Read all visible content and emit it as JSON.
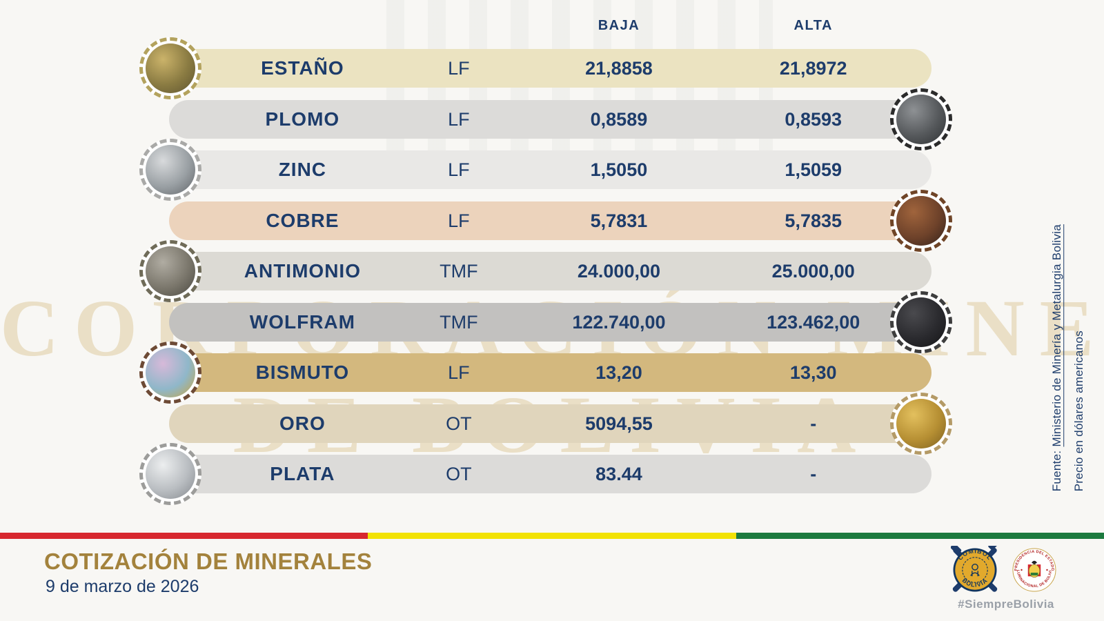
{
  "header": {
    "baja": "BAJA",
    "alta": "ALTA"
  },
  "table": {
    "rows": [
      {
        "name": "ESTAÑO",
        "unit": "LF",
        "baja": "21,8858",
        "alta": "21,8972",
        "side": "left",
        "row_bg": "#ebe3c1",
        "circle_border": "#b3a25d",
        "mineral_colors": [
          "#cbb36a",
          "#8a7b42",
          "#5e5430"
        ]
      },
      {
        "name": "PLOMO",
        "unit": "LF",
        "baja": "0,8589",
        "alta": "0,8593",
        "side": "right",
        "row_bg": "#dcdbd9",
        "circle_border": "#2b2b2b",
        "mineral_colors": [
          "#8e9194",
          "#55585b",
          "#2e3133"
        ]
      },
      {
        "name": "ZINC",
        "unit": "LF",
        "baja": "1,5050",
        "alta": "1,5059",
        "side": "left",
        "row_bg": "#e9e8e6",
        "circle_border": "#a9a9a7",
        "mineral_colors": [
          "#d8dadc",
          "#9aa0a4",
          "#606468"
        ]
      },
      {
        "name": "COBRE",
        "unit": "LF",
        "baja": "5,7831",
        "alta": "5,7835",
        "side": "right",
        "row_bg": "#ecd3bc",
        "circle_border": "#6f4426",
        "mineral_colors": [
          "#a0643c",
          "#6e422a",
          "#33211a"
        ]
      },
      {
        "name": "ANTIMONIO",
        "unit": "TMF",
        "baja": "24.000,00",
        "alta": "25.000,00",
        "side": "left",
        "row_bg": "#dcdad4",
        "circle_border": "#6f6b58",
        "mineral_colors": [
          "#b0aca2",
          "#7b776c",
          "#4a4840"
        ]
      },
      {
        "name": "WOLFRAM",
        "unit": "TMF",
        "baja": "122.740,00",
        "alta": "123.462,00",
        "side": "right",
        "row_bg": "#c2c1bf",
        "circle_border": "#3d3d3d",
        "mineral_colors": [
          "#4a4a4e",
          "#2a2a2e",
          "#141416"
        ]
      },
      {
        "name": "BISMUTO",
        "unit": "LF",
        "baja": "13,20",
        "alta": "13,30",
        "side": "left",
        "row_bg": "#d3b87e",
        "circle_border": "#6d4a35",
        "mineral_colors": [
          "#d7b9d9",
          "#8fb7c9",
          "#c9a43e"
        ]
      },
      {
        "name": "ORO",
        "unit": "OT",
        "baja": "5094,55",
        "alta": "-",
        "side": "right",
        "row_bg": "#e0d5bc",
        "circle_border": "#b49a66",
        "mineral_colors": [
          "#e3c05e",
          "#b68f33",
          "#7c5f1f"
        ]
      },
      {
        "name": "PLATA",
        "unit": "OT",
        "baja": "83.44",
        "alta": "-",
        "side": "left",
        "row_bg": "#dcdbd9",
        "circle_border": "#9c9c9a",
        "mineral_colors": [
          "#eceeef",
          "#b9bdc1",
          "#83878c"
        ]
      }
    ]
  },
  "source_note": {
    "prefix": "Fuente: ",
    "link": "Ministerio de Minería y Metalurgia Bolivia",
    "currency": "Precio en dólares americanos"
  },
  "watermark": {
    "line1": "CORPORACIÓN MINERA",
    "line2": "DE BOLIVIA"
  },
  "footer": {
    "title": "COTIZACIÓN DE MINERALES",
    "date": "9 de marzo de 2026",
    "hashtag": "#SiempreBolivia",
    "flag_colors": [
      "#d7282f",
      "#f2e205",
      "#1c7a3e"
    ],
    "logos": {
      "comibol_top": "COMIBOL",
      "comibol_bottom": "BOLIVIA",
      "presidencia_top": "PRESIDENCIA DEL ESTADO",
      "presidencia_bottom": "PLURINACIONAL DE BOLIVIA"
    }
  },
  "colors": {
    "text_navy": "#1d3c6b",
    "title_gold": "#a3823c"
  }
}
